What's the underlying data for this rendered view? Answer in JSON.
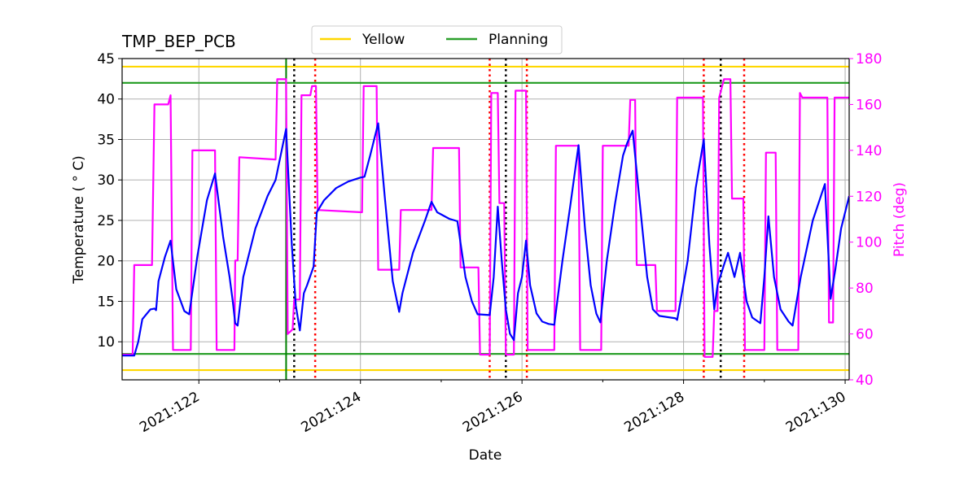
{
  "chart_data": {
    "type": "line",
    "title": "TMP_BEP_PCB",
    "xlabel": "Date",
    "ylabel": "Temperature ($^\\circ$C)",
    "ylabel_display": "Temperature ( ° C)",
    "y2label": "Pitch (deg)",
    "xlim": [
      121.05,
      130.05
    ],
    "ylim": [
      5.3,
      45
    ],
    "y2lim": [
      40,
      180
    ],
    "x_ticks": [
      122,
      124,
      126,
      128,
      130
    ],
    "x_tick_labels": [
      "2021:122",
      "2021:124",
      "2021:126",
      "2021:128",
      "2021:130"
    ],
    "y_ticks": [
      10,
      15,
      20,
      25,
      30,
      35,
      40,
      45
    ],
    "y2_ticks": [
      40,
      60,
      80,
      100,
      120,
      140,
      160,
      180
    ],
    "grid": true,
    "legend": {
      "placement": "top-center",
      "entries": [
        {
          "name": "Yellow",
          "color": "#ffd700"
        },
        {
          "name": "Planning",
          "color": "#2ca02c"
        }
      ]
    },
    "limit_lines": [
      {
        "name": "Yellow",
        "values": [
          44,
          6.5
        ],
        "color": "#ffd700"
      },
      {
        "name": "Planning",
        "values": [
          42,
          8.5
        ],
        "color": "#2ca02c"
      }
    ],
    "vertical_lines": [
      {
        "x": 123.08,
        "color": "#008000",
        "style": "solid"
      },
      {
        "x": 123.18,
        "color": "#000000",
        "style": "dotted"
      },
      {
        "x": 123.44,
        "color": "#ff0000",
        "style": "dotted"
      },
      {
        "x": 125.6,
        "color": "#ff0000",
        "style": "dotted"
      },
      {
        "x": 125.8,
        "color": "#000000",
        "style": "dotted"
      },
      {
        "x": 126.06,
        "color": "#ff0000",
        "style": "dotted"
      },
      {
        "x": 128.25,
        "color": "#ff0000",
        "style": "dotted"
      },
      {
        "x": 128.46,
        "color": "#000000",
        "style": "dotted"
      },
      {
        "x": 128.75,
        "color": "#ff0000",
        "style": "dotted"
      }
    ],
    "series": [
      {
        "axis": "left",
        "color": "#0000ff",
        "values": [
          [
            121.05,
            8.3
          ],
          [
            121.2,
            8.3
          ],
          [
            121.25,
            10
          ],
          [
            121.3,
            12.8
          ],
          [
            121.4,
            14.0
          ],
          [
            121.45,
            14.1
          ],
          [
            121.47,
            13.9
          ],
          [
            121.5,
            17.5
          ],
          [
            121.58,
            20.5
          ],
          [
            121.65,
            22.5
          ],
          [
            121.72,
            16.5
          ],
          [
            121.82,
            13.8
          ],
          [
            121.88,
            13.4
          ],
          [
            121.98,
            20.5
          ],
          [
            122.1,
            27.5
          ],
          [
            122.2,
            30.8
          ],
          [
            122.3,
            23
          ],
          [
            122.38,
            18
          ],
          [
            122.42,
            15
          ],
          [
            122.45,
            12.3
          ],
          [
            122.48,
            12.0
          ],
          [
            122.55,
            18
          ],
          [
            122.7,
            24
          ],
          [
            122.85,
            28
          ],
          [
            122.95,
            30
          ],
          [
            123.08,
            36.3
          ],
          [
            123.15,
            22
          ],
          [
            123.2,
            14.5
          ],
          [
            123.25,
            11.4
          ],
          [
            123.3,
            16
          ],
          [
            123.34,
            17
          ],
          [
            123.42,
            19.3
          ],
          [
            123.46,
            26.0
          ],
          [
            123.55,
            27.5
          ],
          [
            123.7,
            29.0
          ],
          [
            123.85,
            29.8
          ],
          [
            124.0,
            30.3
          ],
          [
            124.05,
            30.4
          ],
          [
            124.12,
            33
          ],
          [
            124.22,
            37.0
          ],
          [
            124.3,
            28
          ],
          [
            124.4,
            17.5
          ],
          [
            124.48,
            13.7
          ],
          [
            124.52,
            16
          ],
          [
            124.65,
            21
          ],
          [
            124.8,
            25
          ],
          [
            124.88,
            27.3
          ],
          [
            124.95,
            26
          ],
          [
            125.1,
            25.2
          ],
          [
            125.2,
            24.9
          ],
          [
            125.3,
            18
          ],
          [
            125.38,
            15
          ],
          [
            125.45,
            13.4
          ],
          [
            125.6,
            13.3
          ],
          [
            125.65,
            18
          ],
          [
            125.7,
            26.7
          ],
          [
            125.75,
            20
          ],
          [
            125.8,
            14
          ],
          [
            125.85,
            11
          ],
          [
            125.9,
            10.2
          ],
          [
            125.95,
            16
          ],
          [
            126.0,
            18
          ],
          [
            126.05,
            22.5
          ],
          [
            126.1,
            17
          ],
          [
            126.18,
            13.5
          ],
          [
            126.25,
            12.5
          ],
          [
            126.33,
            12.2
          ],
          [
            126.4,
            12.1
          ],
          [
            126.5,
            20
          ],
          [
            126.6,
            27
          ],
          [
            126.7,
            34.3
          ],
          [
            126.78,
            24
          ],
          [
            126.85,
            17
          ],
          [
            126.92,
            13.5
          ],
          [
            126.97,
            12.4
          ],
          [
            127.05,
            20
          ],
          [
            127.15,
            27
          ],
          [
            127.25,
            33
          ],
          [
            127.3,
            34.5
          ],
          [
            127.37,
            36.1
          ],
          [
            127.45,
            28
          ],
          [
            127.55,
            18
          ],
          [
            127.62,
            14
          ],
          [
            127.7,
            13.2
          ],
          [
            127.9,
            12.9
          ],
          [
            127.92,
            12.7
          ],
          [
            128.05,
            20
          ],
          [
            128.15,
            29
          ],
          [
            128.25,
            35.0
          ],
          [
            128.32,
            22
          ],
          [
            128.38,
            14
          ],
          [
            128.42,
            17
          ],
          [
            128.5,
            19.5
          ],
          [
            128.55,
            21
          ],
          [
            128.63,
            18
          ],
          [
            128.7,
            21
          ],
          [
            128.78,
            15
          ],
          [
            128.85,
            13
          ],
          [
            128.95,
            12.3
          ],
          [
            129.0,
            18
          ],
          [
            129.05,
            25.5
          ],
          [
            129.12,
            18
          ],
          [
            129.2,
            14
          ],
          [
            129.3,
            12.5
          ],
          [
            129.35,
            12
          ],
          [
            129.45,
            18
          ],
          [
            129.6,
            25
          ],
          [
            129.75,
            29.5
          ],
          [
            129.82,
            15.3
          ],
          [
            129.88,
            19
          ],
          [
            129.95,
            24
          ],
          [
            130.05,
            28
          ]
        ]
      },
      {
        "axis": "right",
        "color": "#ff00ff",
        "values": [
          [
            121.05,
            51
          ],
          [
            121.18,
            51
          ],
          [
            121.2,
            90
          ],
          [
            121.42,
            90
          ],
          [
            121.45,
            160
          ],
          [
            121.62,
            160
          ],
          [
            121.65,
            164
          ],
          [
            121.68,
            53
          ],
          [
            121.9,
            53
          ],
          [
            121.92,
            140
          ],
          [
            122.2,
            140
          ],
          [
            122.22,
            53
          ],
          [
            122.44,
            53
          ],
          [
            122.45,
            92
          ],
          [
            122.48,
            92
          ],
          [
            122.5,
            137
          ],
          [
            122.95,
            136
          ],
          [
            122.97,
            171
          ],
          [
            123.08,
            171
          ],
          [
            123.1,
            60
          ],
          [
            123.16,
            62
          ],
          [
            123.18,
            75
          ],
          [
            123.25,
            75
          ],
          [
            123.27,
            164
          ],
          [
            123.38,
            164
          ],
          [
            123.4,
            168
          ],
          [
            123.45,
            168
          ],
          [
            123.47,
            114
          ],
          [
            124.02,
            113
          ],
          [
            124.04,
            168
          ],
          [
            124.2,
            168
          ],
          [
            124.22,
            88
          ],
          [
            124.48,
            88
          ],
          [
            124.5,
            114
          ],
          [
            124.88,
            114
          ],
          [
            124.9,
            141
          ],
          [
            125.22,
            141
          ],
          [
            125.24,
            89
          ],
          [
            125.46,
            89
          ],
          [
            125.48,
            51
          ],
          [
            125.6,
            51
          ],
          [
            125.62,
            165
          ],
          [
            125.7,
            165
          ],
          [
            125.72,
            117
          ],
          [
            125.78,
            117
          ],
          [
            125.8,
            51
          ],
          [
            125.9,
            51
          ],
          [
            125.92,
            166
          ],
          [
            126.05,
            166
          ],
          [
            126.07,
            53
          ],
          [
            126.4,
            53
          ],
          [
            126.42,
            142
          ],
          [
            126.7,
            142
          ],
          [
            126.72,
            53
          ],
          [
            126.98,
            53
          ],
          [
            127.0,
            142
          ],
          [
            127.32,
            142
          ],
          [
            127.34,
            162
          ],
          [
            127.4,
            162
          ],
          [
            127.42,
            90
          ],
          [
            127.65,
            90
          ],
          [
            127.67,
            70
          ],
          [
            127.9,
            70
          ],
          [
            127.92,
            163
          ],
          [
            128.24,
            163
          ],
          [
            128.26,
            50
          ],
          [
            128.36,
            50
          ],
          [
            128.38,
            70
          ],
          [
            128.42,
            70
          ],
          [
            128.44,
            163
          ],
          [
            128.5,
            171
          ],
          [
            128.58,
            171
          ],
          [
            128.6,
            119
          ],
          [
            128.74,
            119
          ],
          [
            128.76,
            53
          ],
          [
            129.0,
            53
          ],
          [
            129.02,
            139
          ],
          [
            129.14,
            139
          ],
          [
            129.16,
            53
          ],
          [
            129.42,
            53
          ],
          [
            129.44,
            165
          ],
          [
            129.47,
            163
          ],
          [
            129.78,
            163
          ],
          [
            129.8,
            65
          ],
          [
            129.85,
            65
          ],
          [
            129.87,
            163
          ],
          [
            130.05,
            163
          ]
        ]
      }
    ]
  }
}
